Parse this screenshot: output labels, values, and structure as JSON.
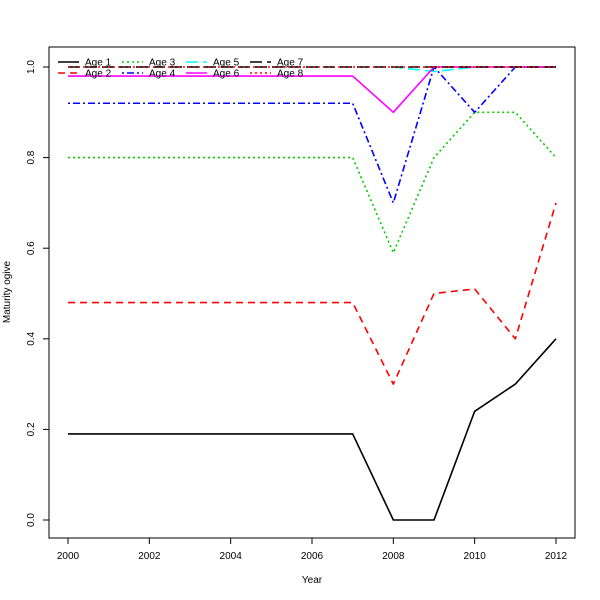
{
  "chart_data": {
    "type": "line",
    "title": "",
    "xlabel": "Year",
    "ylabel": "Maturity ogive",
    "xlim": [
      2000,
      2012
    ],
    "ylim": [
      0.0,
      1.0
    ],
    "x_ticks": [
      "2000",
      "2002",
      "2004",
      "2006",
      "2008",
      "2010",
      "2012"
    ],
    "y_ticks": [
      "0.0",
      "0.2",
      "0.4",
      "0.6",
      "0.8",
      "1.0"
    ],
    "legend_position": "top-left",
    "legend_columns": 4,
    "x": [
      2000,
      2001,
      2002,
      2003,
      2004,
      2005,
      2006,
      2007,
      2008,
      2009,
      2010,
      2011,
      2012
    ],
    "series": [
      {
        "name": "Age 1",
        "color": "#000000",
        "dash": "solid",
        "values": [
          0.19,
          0.19,
          0.19,
          0.19,
          0.19,
          0.19,
          0.19,
          0.19,
          0.0,
          0.0,
          0.24,
          0.3,
          0.4
        ]
      },
      {
        "name": "Age 2",
        "color": "#ff0000",
        "dash": "dashed",
        "values": [
          0.48,
          0.48,
          0.48,
          0.48,
          0.48,
          0.48,
          0.48,
          0.48,
          0.3,
          0.5,
          0.51,
          0.4,
          0.7
        ]
      },
      {
        "name": "Age 3",
        "color": "#00cd00",
        "dash": "dotted",
        "values": [
          0.8,
          0.8,
          0.8,
          0.8,
          0.8,
          0.8,
          0.8,
          0.8,
          0.59,
          0.8,
          0.9,
          0.9,
          0.8
        ]
      },
      {
        "name": "Age 4",
        "color": "#0000ff",
        "dash": "dotdash",
        "values": [
          0.92,
          0.92,
          0.92,
          0.92,
          0.92,
          0.92,
          0.92,
          0.92,
          0.7,
          1.0,
          0.9,
          1.0,
          1.0
        ]
      },
      {
        "name": "Age 5",
        "color": "#00ffff",
        "dash": "longdash",
        "values": [
          1.0,
          1.0,
          1.0,
          1.0,
          1.0,
          1.0,
          1.0,
          1.0,
          1.0,
          0.99,
          1.0,
          1.0,
          1.0
        ]
      },
      {
        "name": "Age 6",
        "color": "#ff00ff",
        "dash": "solid",
        "values": [
          0.98,
          0.98,
          0.98,
          0.98,
          0.98,
          0.98,
          0.98,
          0.98,
          0.9,
          1.0,
          1.0,
          1.0,
          1.0
        ]
      },
      {
        "name": "Age 7",
        "color": "#000000",
        "dash": "longdash",
        "values": [
          1.0,
          1.0,
          1.0,
          1.0,
          1.0,
          1.0,
          1.0,
          1.0,
          1.0,
          1.0,
          1.0,
          1.0,
          1.0
        ]
      },
      {
        "name": "Age 8",
        "color": "#ff0000",
        "dash": "dotted",
        "values": [
          1.0,
          1.0,
          1.0,
          1.0,
          1.0,
          1.0,
          1.0,
          1.0,
          1.0,
          1.0,
          1.0,
          1.0,
          1.0
        ]
      }
    ]
  }
}
